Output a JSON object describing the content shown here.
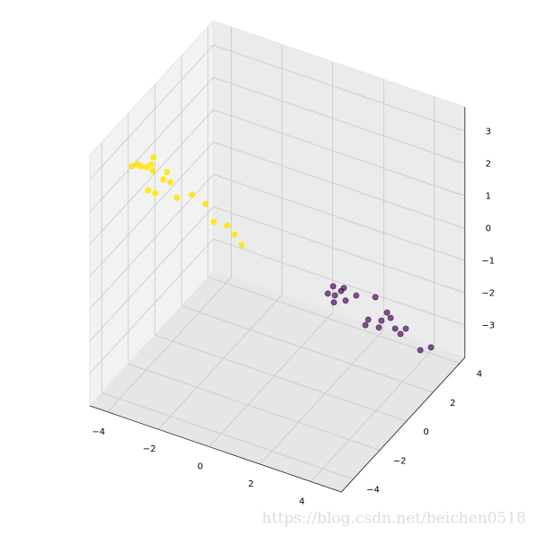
{
  "chart_data": {
    "type": "scatter3d",
    "watermark": "https://blog.csdn.net/beichen0518",
    "xlim": [
      -4.7,
      5.2
    ],
    "ylim": [
      -4.9,
      4.4
    ],
    "zlim": [
      -4,
      3.75
    ],
    "xticks": [
      {
        "value": -4,
        "label": "−4"
      },
      {
        "value": -2,
        "label": "−2"
      },
      0,
      2,
      4
    ],
    "yticks": [
      {
        "value": -4,
        "label": "−4"
      },
      {
        "value": -2,
        "label": "−2"
      },
      0,
      2,
      4
    ],
    "zticks": [
      {
        "value": -3,
        "label": "−3"
      },
      {
        "value": -2,
        "label": "−2"
      },
      {
        "value": -1,
        "label": "−1"
      },
      0,
      1,
      2,
      3
    ],
    "grid": true,
    "series": [
      {
        "color": "#fde725",
        "opacity": 1,
        "x": [
          -4.55,
          -4.34,
          -4.2,
          -3.99,
          -3.81,
          -3.71,
          -3.74,
          -3.18,
          -3.32,
          -3.04,
          -3.92,
          -3.64,
          -2.79,
          -2.19,
          -1.66,
          -1.34,
          -0.81,
          -0.53,
          -0.24
        ],
        "y": [
          -2,
          -2,
          -2,
          -2,
          -2,
          -2,
          -2,
          -2,
          -2,
          -2,
          -2,
          -2,
          -2,
          -2,
          -2,
          -2,
          -2,
          -2,
          -2
        ],
        "z": [
          2.16,
          2.27,
          2.25,
          2.28,
          2.41,
          2.66,
          2.24,
          2.34,
          2.08,
          2.07,
          1.58,
          1.57,
          1.66,
          1.91,
          1.77,
          1.3,
          1.33,
          1.13,
          0.88
        ]
      },
      {
        "color": "#440154",
        "opacity": 0.65,
        "x": [
          1.27,
          1.69,
          1.06,
          1.34,
          1.58,
          2.18,
          2.93,
          1.3,
          1.76,
          3.39,
          2.65,
          3.17,
          3.53,
          2.54,
          3.07,
          3.71,
          4.13,
          3.92,
          4.7,
          5.12
        ],
        "y": [
          2,
          2,
          2,
          2,
          2,
          2,
          2,
          2,
          2,
          2,
          2,
          2,
          2,
          2,
          2,
          2,
          2,
          2,
          2,
          2
        ],
        "z": [
          -1.78,
          -1.72,
          -2.06,
          -2.04,
          -1.84,
          -1.82,
          -1.67,
          -2.27,
          -2.09,
          -2.02,
          -2.44,
          -2.33,
          -2.15,
          -2.64,
          -2.57,
          -2.43,
          -2.32,
          -2.54,
          -2.83,
          -2.63
        ]
      }
    ]
  }
}
